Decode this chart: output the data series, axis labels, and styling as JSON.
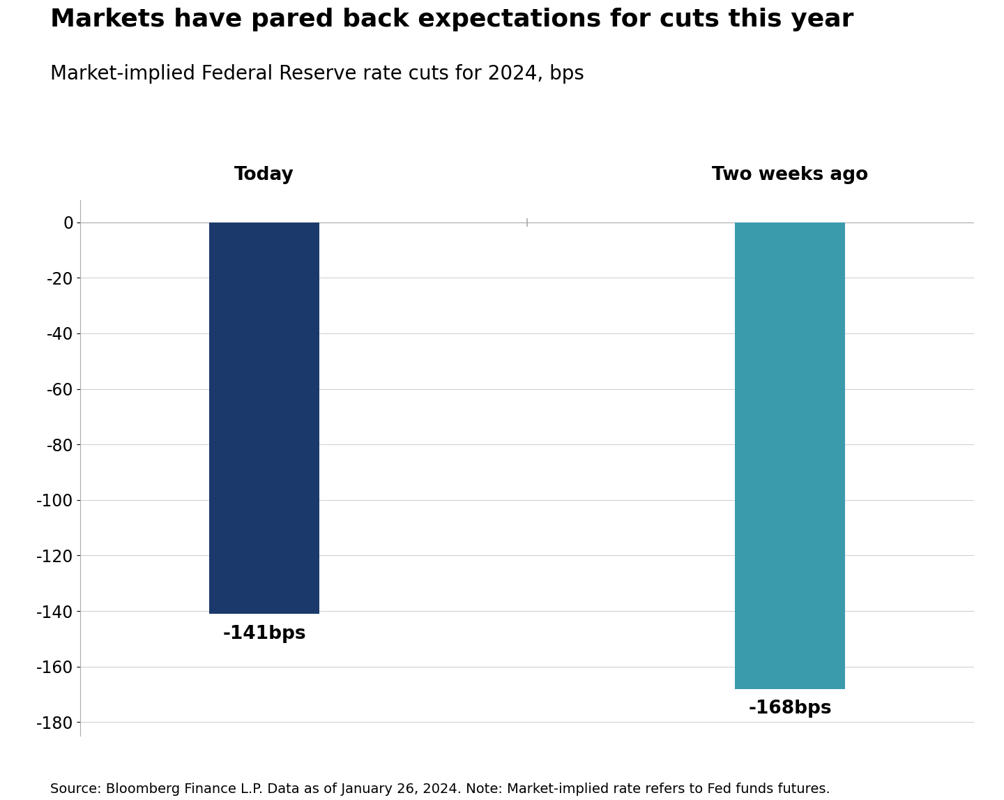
{
  "title": "Markets have pared back expectations for cuts this year",
  "subtitle": "Market-implied Federal Reserve rate cuts for 2024, bps",
  "source": "Source: Bloomberg Finance L.P. Data as of January 26, 2024. Note: Market-implied rate refers to Fed funds futures.",
  "categories": [
    "Today",
    "Two weeks ago"
  ],
  "values": [
    -141,
    -168
  ],
  "bar_colors": [
    "#1B3A6B",
    "#3A9BAD"
  ],
  "bar_labels": [
    "-141bps",
    "-168bps"
  ],
  "x_positions": [
    1,
    3
  ],
  "ylim": [
    -185,
    8
  ],
  "yticks": [
    0,
    -20,
    -40,
    -60,
    -80,
    -100,
    -120,
    -140,
    -160,
    -180
  ],
  "bar_width": 0.42,
  "title_fontsize": 26,
  "subtitle_fontsize": 20,
  "label_fontsize": 19,
  "category_fontsize": 19,
  "source_fontsize": 14,
  "tick_fontsize": 17,
  "background_color": "#FFFFFF",
  "text_color": "#000000",
  "grid_color": "#CCCCCC",
  "spine_color": "#AAAAAA"
}
